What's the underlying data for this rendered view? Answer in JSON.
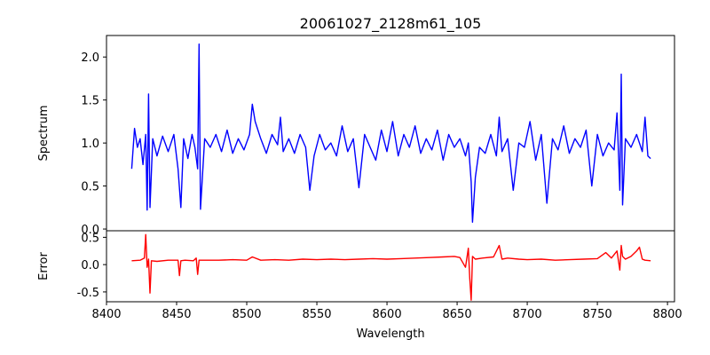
{
  "chart_data": {
    "type": "line",
    "title": "20061027_2128m61_105",
    "xlabel": "Wavelength",
    "xlim": [
      8400,
      8805
    ],
    "xticks": [
      "8400",
      "8450",
      "8500",
      "8550",
      "8600",
      "8650",
      "8700",
      "8750",
      "8800"
    ],
    "xtick_values": [
      8400,
      8450,
      8500,
      8550,
      8600,
      8650,
      8700,
      8750,
      8800
    ],
    "data_x_range": [
      8418,
      8788
    ],
    "panels": [
      {
        "ylabel": "Spectrum",
        "ylim": [
          -0.02,
          2.25
        ],
        "yticks": [
          "0.0",
          "0.5",
          "1.0",
          "1.5",
          "2.0"
        ],
        "ytick_values": [
          0.0,
          0.5,
          1.0,
          1.5,
          2.0
        ],
        "color": "#0000ff",
        "x": [
          8418,
          8420,
          8422,
          8424,
          8426,
          8428,
          8429,
          8430,
          8431,
          8433,
          8436,
          8440,
          8444,
          8448,
          8451,
          8453,
          8455,
          8458,
          8461,
          8463,
          8465,
          8466,
          8467,
          8470,
          8474,
          8478,
          8482,
          8486,
          8490,
          8494,
          8498,
          8502,
          8504,
          8506,
          8510,
          8514,
          8518,
          8522,
          8524,
          8526,
          8530,
          8534,
          8538,
          8542,
          8545,
          8548,
          8552,
          8556,
          8560,
          8564,
          8568,
          8572,
          8576,
          8580,
          8584,
          8588,
          8592,
          8596,
          8600,
          8604,
          8608,
          8612,
          8616,
          8620,
          8624,
          8628,
          8632,
          8636,
          8640,
          8644,
          8648,
          8652,
          8656,
          8658,
          8660,
          8661,
          8663,
          8666,
          8670,
          8674,
          8678,
          8680,
          8682,
          8686,
          8690,
          8694,
          8698,
          8702,
          8706,
          8710,
          8714,
          8718,
          8722,
          8726,
          8730,
          8734,
          8738,
          8742,
          8746,
          8750,
          8754,
          8758,
          8762,
          8764,
          8766,
          8767,
          8768,
          8770,
          8774,
          8778,
          8782,
          8784,
          8786,
          8788
        ],
        "values": [
          0.7,
          1.17,
          0.95,
          1.05,
          0.75,
          1.1,
          0.22,
          1.57,
          0.25,
          1.05,
          0.85,
          1.08,
          0.9,
          1.1,
          0.7,
          0.25,
          1.05,
          0.82,
          1.1,
          0.95,
          0.7,
          2.15,
          0.23,
          1.05,
          0.95,
          1.1,
          0.9,
          1.15,
          0.88,
          1.05,
          0.92,
          1.1,
          1.45,
          1.25,
          1.05,
          0.88,
          1.1,
          0.98,
          1.3,
          0.9,
          1.05,
          0.88,
          1.1,
          0.95,
          0.45,
          0.85,
          1.1,
          0.92,
          1.0,
          0.85,
          1.2,
          0.9,
          1.05,
          0.48,
          1.1,
          0.95,
          0.8,
          1.15,
          0.9,
          1.25,
          0.85,
          1.1,
          0.95,
          1.2,
          0.88,
          1.05,
          0.92,
          1.15,
          0.8,
          1.1,
          0.95,
          1.05,
          0.85,
          1.0,
          0.55,
          0.08,
          0.6,
          0.95,
          0.88,
          1.1,
          0.85,
          1.3,
          0.9,
          1.05,
          0.45,
          1.0,
          0.95,
          1.25,
          0.8,
          1.1,
          0.3,
          1.05,
          0.92,
          1.2,
          0.88,
          1.05,
          0.95,
          1.15,
          0.5,
          1.1,
          0.85,
          1.0,
          0.92,
          1.35,
          0.45,
          1.8,
          0.28,
          1.05,
          0.95,
          1.1,
          0.9,
          1.3,
          0.85,
          0.82
        ],
        "note_label": ""
      },
      {
        "ylabel": "Error",
        "ylim": [
          -0.68,
          0.62
        ],
        "yticks": [
          "-0.5",
          "0.0",
          "0.5"
        ],
        "ytick_values": [
          -0.5,
          0.0,
          0.5
        ],
        "color": "#ff0000",
        "x": [
          8418,
          8424,
          8427,
          8428,
          8429,
          8430,
          8431,
          8432,
          8436,
          8444,
          8451,
          8452,
          8453,
          8456,
          8462,
          8464,
          8465,
          8466,
          8470,
          8480,
          8490,
          8500,
          8504,
          8510,
          8520,
          8530,
          8540,
          8550,
          8560,
          8570,
          8580,
          8590,
          8600,
          8610,
          8620,
          8630,
          8640,
          8648,
          8652,
          8656,
          8658,
          8659,
          8660,
          8661,
          8663,
          8668,
          8676,
          8680,
          8682,
          8686,
          8694,
          8700,
          8710,
          8720,
          8730,
          8740,
          8750,
          8756,
          8760,
          8764,
          8766,
          8767,
          8768,
          8770,
          8774,
          8778,
          8780,
          8782,
          8784,
          8788
        ],
        "values": [
          0.07,
          0.08,
          0.12,
          0.55,
          -0.05,
          0.1,
          -0.52,
          0.07,
          0.06,
          0.08,
          0.08,
          -0.2,
          0.07,
          0.08,
          0.07,
          0.12,
          -0.18,
          0.08,
          0.08,
          0.08,
          0.09,
          0.08,
          0.14,
          0.08,
          0.09,
          0.08,
          0.1,
          0.09,
          0.1,
          0.09,
          0.1,
          0.11,
          0.1,
          0.11,
          0.12,
          0.13,
          0.14,
          0.15,
          0.13,
          -0.05,
          0.3,
          -0.25,
          -0.65,
          0.15,
          0.1,
          0.12,
          0.14,
          0.35,
          0.1,
          0.12,
          0.1,
          0.09,
          0.1,
          0.08,
          0.09,
          0.1,
          0.11,
          0.22,
          0.12,
          0.25,
          -0.1,
          0.35,
          0.15,
          0.1,
          0.15,
          0.25,
          0.32,
          0.1,
          0.08,
          0.07
        ]
      }
    ]
  }
}
